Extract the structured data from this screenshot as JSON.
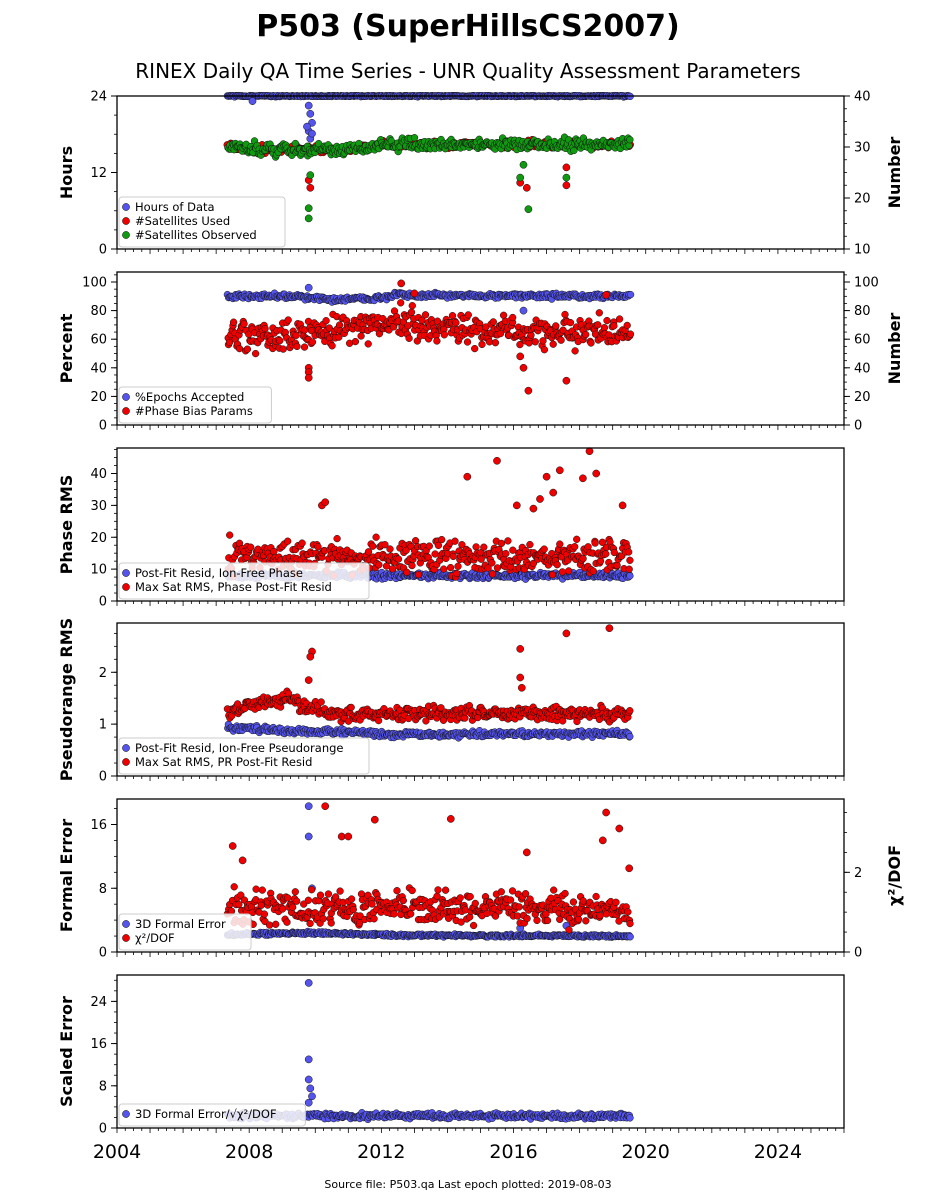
{
  "figure": {
    "title": "P503 (SuperHillsCS2007)",
    "subtitle": "RINEX Daily QA Time Series - UNR Quality Assessment Parameters",
    "source_note": "Source file: P503.qa Last epoch plotted: 2019-08-03"
  },
  "colors": {
    "blue": "#5555ee",
    "red": "#ee0000",
    "green": "#119911",
    "marker_edge": "#111111"
  },
  "chart_data": [
    {
      "type": "scatter",
      "panel": "hours",
      "ylabel": "Hours",
      "ylabel_right": "Number",
      "xlim": [
        2004,
        2026
      ],
      "ylim": [
        0,
        24
      ],
      "ylim_right": [
        10,
        40
      ],
      "yticks": [
        0,
        12,
        24
      ],
      "yticks_right": [
        10,
        20,
        30,
        40
      ],
      "legend_position": "lower left",
      "series": [
        {
          "name": "Hours of Data",
          "color": "blue",
          "axis": "left",
          "base": [
            [
              2007.35,
              24
            ],
            [
              2019.55,
              24
            ]
          ],
          "spread": 0.1,
          "outliers": [
            [
              2008.1,
              23.2
            ],
            [
              2009.8,
              22.5
            ],
            [
              2009.85,
              21.2
            ],
            [
              2009.9,
              19.8
            ],
            [
              2009.8,
              18.5
            ],
            [
              2009.85,
              17.3
            ],
            [
              2009.9,
              18.1
            ],
            [
              2009.75,
              19.2
            ]
          ]
        },
        {
          "name": "#Satellites Used",
          "color": "red",
          "axis": "right",
          "base": [
            [
              2007.35,
              30
            ],
            [
              2008.5,
              29.5
            ],
            [
              2009.8,
              29.5
            ],
            [
              2011.0,
              29.5
            ],
            [
              2012.0,
              30.5
            ],
            [
              2019.55,
              30.5
            ]
          ],
          "spread": 0.6,
          "outliers": [
            [
              2009.8,
              23.5
            ],
            [
              2009.85,
              22.0
            ],
            [
              2016.2,
              23.0
            ],
            [
              2016.4,
              22.0
            ],
            [
              2017.6,
              26.0
            ],
            [
              2017.6,
              22.5
            ]
          ]
        },
        {
          "name": "#Satellites Observed",
          "color": "green",
          "axis": "right",
          "base": [
            [
              2007.35,
              30
            ],
            [
              2008.5,
              29.5
            ],
            [
              2009.8,
              29.5
            ],
            [
              2011.0,
              29.5
            ],
            [
              2012.0,
              30.5
            ],
            [
              2019.55,
              30.5
            ]
          ],
          "spread": 1.0,
          "outliers": [
            [
              2009.8,
              18.0
            ],
            [
              2009.8,
              16.0
            ],
            [
              2009.85,
              24.5
            ],
            [
              2016.2,
              24.0
            ],
            [
              2016.3,
              26.5
            ],
            [
              2016.45,
              17.8
            ],
            [
              2017.6,
              24.0
            ]
          ]
        }
      ]
    },
    {
      "type": "scatter",
      "panel": "percent",
      "ylabel": "Percent",
      "ylabel_right": "Number",
      "xlim": [
        2004,
        2026
      ],
      "ylim": [
        0,
        107
      ],
      "ylim_right": [
        0,
        107
      ],
      "yticks": [
        0,
        20,
        40,
        60,
        80,
        100
      ],
      "yticks_right": [
        0,
        20,
        40,
        60,
        80,
        100
      ],
      "legend_position": "lower left",
      "series": [
        {
          "name": "%Epochs Accepted",
          "color": "blue",
          "axis": "left",
          "base": [
            [
              2007.35,
              90
            ],
            [
              2009.5,
              90
            ],
            [
              2010.3,
              88
            ],
            [
              2011.7,
              88
            ],
            [
              2012.5,
              91
            ],
            [
              2019.55,
              90
            ]
          ],
          "spread": 1.5,
          "outliers": [
            [
              2009.8,
              96
            ],
            [
              2016.3,
              80
            ]
          ]
        },
        {
          "name": "#Phase Bias Params",
          "color": "red",
          "axis": "right",
          "base": [
            [
              2007.35,
              62
            ],
            [
              2009.0,
              62
            ],
            [
              2010.0,
              65
            ],
            [
              2011.5,
              68
            ],
            [
              2012.5,
              72
            ],
            [
              2013.5,
              68
            ],
            [
              2015.0,
              66
            ],
            [
              2019.55,
              65
            ]
          ],
          "spread": 9,
          "outliers": [
            [
              2009.8,
              40
            ],
            [
              2009.8,
              37
            ],
            [
              2009.8,
              33
            ],
            [
              2012.6,
              99
            ],
            [
              2016.2,
              48
            ],
            [
              2016.3,
              40
            ],
            [
              2016.45,
              24
            ],
            [
              2017.6,
              31
            ],
            [
              2013.0,
              92
            ],
            [
              2018.8,
              91
            ]
          ]
        }
      ]
    },
    {
      "type": "scatter",
      "panel": "phase_rms",
      "ylabel": "Phase RMS",
      "xlim": [
        2004,
        2026
      ],
      "ylim": [
        0,
        48
      ],
      "yticks": [
        0,
        10,
        20,
        30,
        40
      ],
      "legend_position": "lower left",
      "series": [
        {
          "name": "Post-Fit Resid, Ion-Free Phase",
          "color": "blue",
          "axis": "left",
          "base": [
            [
              2007.35,
              8
            ],
            [
              2019.55,
              8
            ]
          ],
          "spread": 0.8,
          "outliers": []
        },
        {
          "name": "Max Sat RMS, Phase Post-Fit Resid",
          "color": "red",
          "axis": "left",
          "base": [
            [
              2007.35,
              14
            ],
            [
              2019.55,
              14
            ]
          ],
          "spread": 4.5,
          "outliers": [
            [
              2010.2,
              30
            ],
            [
              2010.3,
              31
            ],
            [
              2014.6,
              39
            ],
            [
              2015.5,
              44
            ],
            [
              2016.8,
              32
            ],
            [
              2017.2,
              34
            ],
            [
              2017.4,
              41
            ],
            [
              2018.1,
              38.5
            ],
            [
              2018.3,
              47
            ],
            [
              2018.5,
              40
            ],
            [
              2019.3,
              30
            ],
            [
              2016.1,
              30
            ],
            [
              2017.0,
              39
            ],
            [
              2016.6,
              29
            ]
          ]
        }
      ]
    },
    {
      "type": "scatter",
      "panel": "pseudorange_rms",
      "ylabel": "Pseudorange RMS",
      "xlim": [
        2004,
        2026
      ],
      "ylim": [
        0,
        2.95
      ],
      "yticks": [
        0,
        1,
        2
      ],
      "legend_position": "lower left",
      "series": [
        {
          "name": "Post-Fit Resid, Ion-Free Pseudorange",
          "color": "blue",
          "axis": "left",
          "base": [
            [
              2007.35,
              0.93
            ],
            [
              2008.5,
              0.9
            ],
            [
              2009.8,
              0.85
            ],
            [
              2011.0,
              0.85
            ],
            [
              2012.0,
              0.8
            ],
            [
              2019.55,
              0.82
            ]
          ],
          "spread": 0.05,
          "outliers": []
        },
        {
          "name": "Max Sat RMS, PR Post-Fit Resid",
          "color": "red",
          "axis": "left",
          "base": [
            [
              2007.35,
              1.2
            ],
            [
              2008.2,
              1.4
            ],
            [
              2009.2,
              1.5
            ],
            [
              2009.8,
              1.3
            ],
            [
              2010.5,
              1.2
            ],
            [
              2019.55,
              1.2
            ]
          ],
          "spread": 0.12,
          "outliers": [
            [
              2009.9,
              2.4
            ],
            [
              2009.85,
              2.3
            ],
            [
              2009.8,
              1.85
            ],
            [
              2016.2,
              2.45
            ],
            [
              2016.2,
              1.9
            ],
            [
              2016.25,
              1.7
            ],
            [
              2017.6,
              2.75
            ],
            [
              2018.9,
              2.85
            ]
          ]
        }
      ]
    },
    {
      "type": "scatter",
      "panel": "formal_error",
      "ylabel": "Formal Error",
      "ylabel_right": "χ²/DOF",
      "xlim": [
        2004,
        2026
      ],
      "ylim": [
        0,
        19.2
      ],
      "ylim_right": [
        0,
        3.84
      ],
      "yticks": [
        0,
        8,
        16
      ],
      "yticks_right": [
        0,
        2
      ],
      "legend_position": "lower left",
      "series": [
        {
          "name": "3D Formal Error",
          "color": "blue",
          "axis": "left",
          "base": [
            [
              2007.35,
              2.2
            ],
            [
              2010.0,
              2.4
            ],
            [
              2012.5,
              2.1
            ],
            [
              2019.55,
              2.0
            ]
          ],
          "spread": 0.15,
          "outliers": [
            [
              2009.8,
              18.3
            ],
            [
              2009.8,
              14.5
            ],
            [
              2009.9,
              8.0
            ],
            [
              2016.2,
              3.0
            ],
            [
              2017.6,
              3.3
            ]
          ]
        },
        {
          "name": "χ²/DOF",
          "color": "red",
          "axis": "right",
          "base": [
            [
              2007.35,
              1.1
            ],
            [
              2019.55,
              1.1
            ]
          ],
          "spread": 0.35,
          "outliers": [
            [
              2007.5,
              2.66
            ],
            [
              2007.8,
              2.3
            ],
            [
              2010.3,
              3.66
            ],
            [
              2010.8,
              2.9
            ],
            [
              2011.0,
              2.9
            ],
            [
              2011.8,
              3.32
            ],
            [
              2014.1,
              3.34
            ],
            [
              2018.7,
              2.8
            ],
            [
              2019.2,
              3.1
            ],
            [
              2018.8,
              3.5
            ],
            [
              2016.4,
              2.5
            ],
            [
              2019.5,
              2.1
            ]
          ]
        }
      ]
    },
    {
      "type": "scatter",
      "panel": "scaled_error",
      "ylabel": "Scaled Error",
      "xlim": [
        2004,
        2026
      ],
      "ylim": [
        0,
        29
      ],
      "yticks": [
        0,
        8,
        16,
        24
      ],
      "xticks": [
        2004,
        2008,
        2012,
        2016,
        2020,
        2024
      ],
      "legend_position": "lower left",
      "series": [
        {
          "name": "3D Formal Error/√χ²/DOF",
          "color": "blue",
          "axis": "left",
          "base": [
            [
              2007.35,
              2.3
            ],
            [
              2019.55,
              2.3
            ]
          ],
          "spread": 0.45,
          "outliers": [
            [
              2009.8,
              27.5
            ],
            [
              2009.8,
              13.0
            ],
            [
              2009.8,
              9.2
            ],
            [
              2009.85,
              7.5
            ],
            [
              2009.9,
              6.0
            ],
            [
              2009.8,
              4.8
            ]
          ]
        }
      ]
    }
  ]
}
